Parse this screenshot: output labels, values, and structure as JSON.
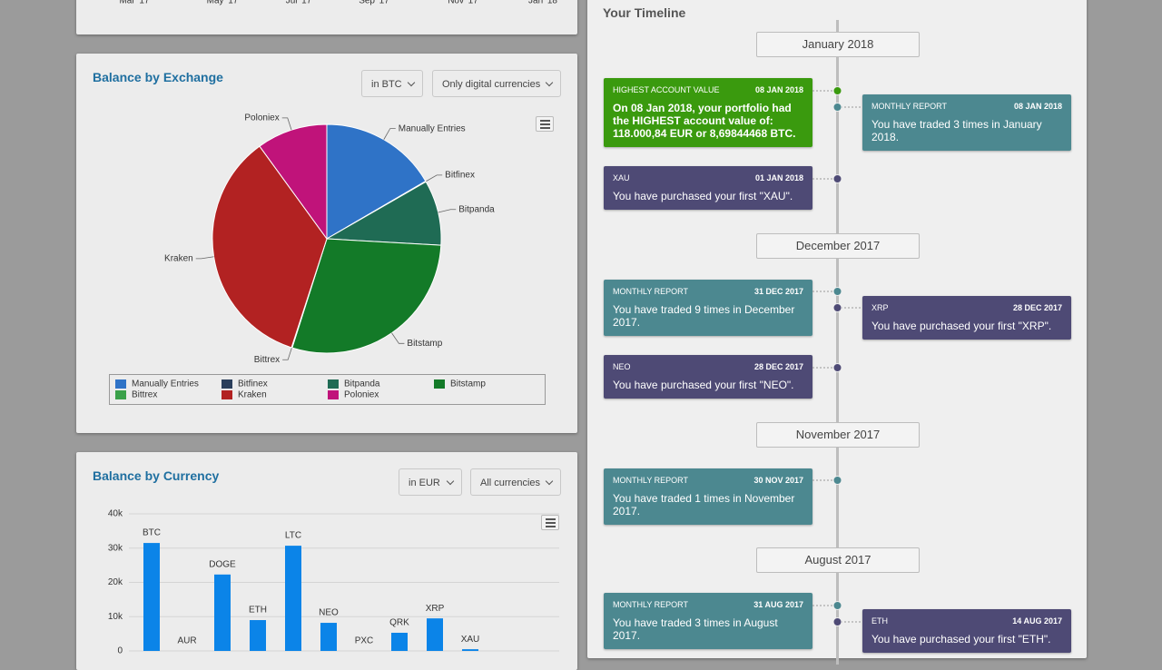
{
  "top_chart": {
    "x_labels": [
      "Mar '17",
      "May '17",
      "Jul '17",
      "Sep '17",
      "Nov '17",
      "Jan '18"
    ]
  },
  "exchange_controls": [
    "in BTC",
    "Only digital currencies"
  ],
  "currency_controls": [
    "in EUR",
    "All currencies"
  ],
  "chart_data": [
    {
      "type": "pie",
      "title": "Balance by Exchange",
      "categories": [
        "Manually Entries",
        "Bitfinex",
        "Bitpanda",
        "Bitstamp",
        "Bittrex",
        "Kraken",
        "Poloniex"
      ],
      "values": [
        16.6,
        0.1,
        9.2,
        29.0,
        0.1,
        35.0,
        10.0
      ],
      "colors": [
        "#2f73c7",
        "#2b3f5c",
        "#1f6b54",
        "#137a28",
        "#3aa14a",
        "#b22222",
        "#c0137a"
      ],
      "legend": "bottom"
    },
    {
      "type": "bar",
      "title": "Balance by Currency",
      "categories": [
        "BTC",
        "AUR",
        "DOGE",
        "ETH",
        "LTC",
        "NEO",
        "PXC",
        "QRK",
        "XRP",
        "XAU"
      ],
      "values": [
        31500,
        0,
        22300,
        9000,
        30700,
        8200,
        0,
        5300,
        9500,
        500
      ],
      "color": "#0b84e8",
      "ylim": [
        0,
        40000
      ],
      "yticks": [
        0,
        {
          "value": 10000,
          "label": "10k"
        },
        {
          "value": 20000,
          "label": "20k"
        },
        {
          "value": 30000,
          "label": "30k"
        },
        {
          "value": 40000,
          "label": "40k"
        }
      ],
      "grid": true
    }
  ],
  "timeline": {
    "title": "Your Timeline",
    "groups": [
      {
        "month": "January 2018",
        "events": [
          {
            "type": "HIGHEST ACCOUNT VALUE",
            "date": "08 JAN 2018",
            "text": "On 08 Jan 2018, your portfolio had the HIGHEST account value of: 118.000,84 EUR or 8,69844468 BTC.",
            "color": "#3a9a0e"
          },
          {
            "type": "MONTHLY REPORT",
            "date": "08 JAN 2018",
            "text": "You have traded 3 times in January 2018.",
            "color": "#4c8890"
          },
          {
            "type": "XAU",
            "date": "01 JAN 2018",
            "text": "You have purchased your first \"XAU\".",
            "color": "#4e4a75"
          }
        ]
      },
      {
        "month": "December 2017",
        "events": [
          {
            "type": "MONTHLY REPORT",
            "date": "31 DEC 2017",
            "text": "You have traded 9 times in December 2017.",
            "color": "#4c8890"
          },
          {
            "type": "XRP",
            "date": "28 DEC 2017",
            "text": "You have purchased your first \"XRP\".",
            "color": "#4e4a75"
          },
          {
            "type": "NEO",
            "date": "28 DEC 2017",
            "text": "You have purchased your first \"NEO\".",
            "color": "#4e4a75"
          }
        ]
      },
      {
        "month": "November 2017",
        "events": [
          {
            "type": "MONTHLY REPORT",
            "date": "30 NOV 2017",
            "text": "You have traded 1 times in November 2017.",
            "color": "#4c8890"
          }
        ]
      },
      {
        "month": "August 2017",
        "events": [
          {
            "type": "MONTHLY REPORT",
            "date": "31 AUG 2017",
            "text": "You have traded 3 times in August 2017.",
            "color": "#4c8890"
          },
          {
            "type": "ETH",
            "date": "14 AUG 2017",
            "text": "You have purchased your first \"ETH\".",
            "color": "#4e4a75"
          }
        ]
      }
    ]
  }
}
